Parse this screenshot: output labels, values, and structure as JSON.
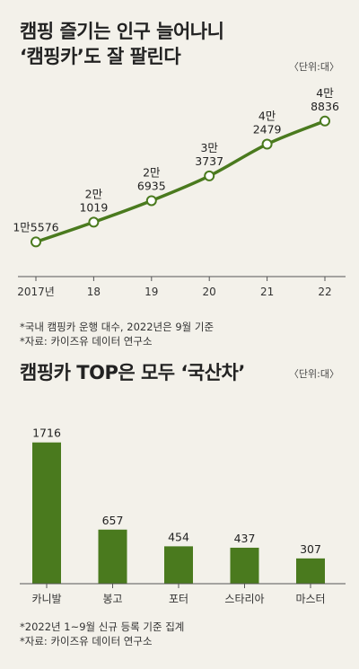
{
  "chart_data": [
    {
      "type": "line",
      "title_line1": "캠핑 즐기는 인구 늘어나니",
      "title_line2": "‘캠핑카’도 잘 팔린다",
      "unit": "〈단위:대〉",
      "categories": [
        "2017년",
        "18",
        "19",
        "20",
        "21",
        "22"
      ],
      "values": [
        15576,
        21019,
        26935,
        33737,
        42479,
        48836
      ],
      "labels": [
        [
          "1만5576"
        ],
        [
          "2만",
          "1019"
        ],
        [
          "2만",
          "6935"
        ],
        [
          "3만",
          "3737"
        ],
        [
          "4만",
          "2479"
        ],
        [
          "4만",
          "8836"
        ]
      ],
      "ylim": [
        10000,
        52000
      ],
      "color": "#4a7a1e",
      "notes": [
        "*국내 캠핑카 운행 대수, 2022년은 9월 기준",
        "*자료: 카이즈유 데이터 연구소"
      ]
    },
    {
      "type": "bar",
      "title": "캠핑카 TOP은 모두 ‘국산차’",
      "unit": "〈단위:대〉",
      "categories": [
        "카니발",
        "봉고",
        "포터",
        "스타리아",
        "마스터"
      ],
      "values": [
        1716,
        657,
        454,
        437,
        307
      ],
      "ylim": [
        0,
        1800
      ],
      "color": "#4a7a1e",
      "notes": [
        "*2022년 1~9월 신규 등록 기준 집계",
        "*자료: 카이즈유 데이터 연구소"
      ]
    }
  ]
}
